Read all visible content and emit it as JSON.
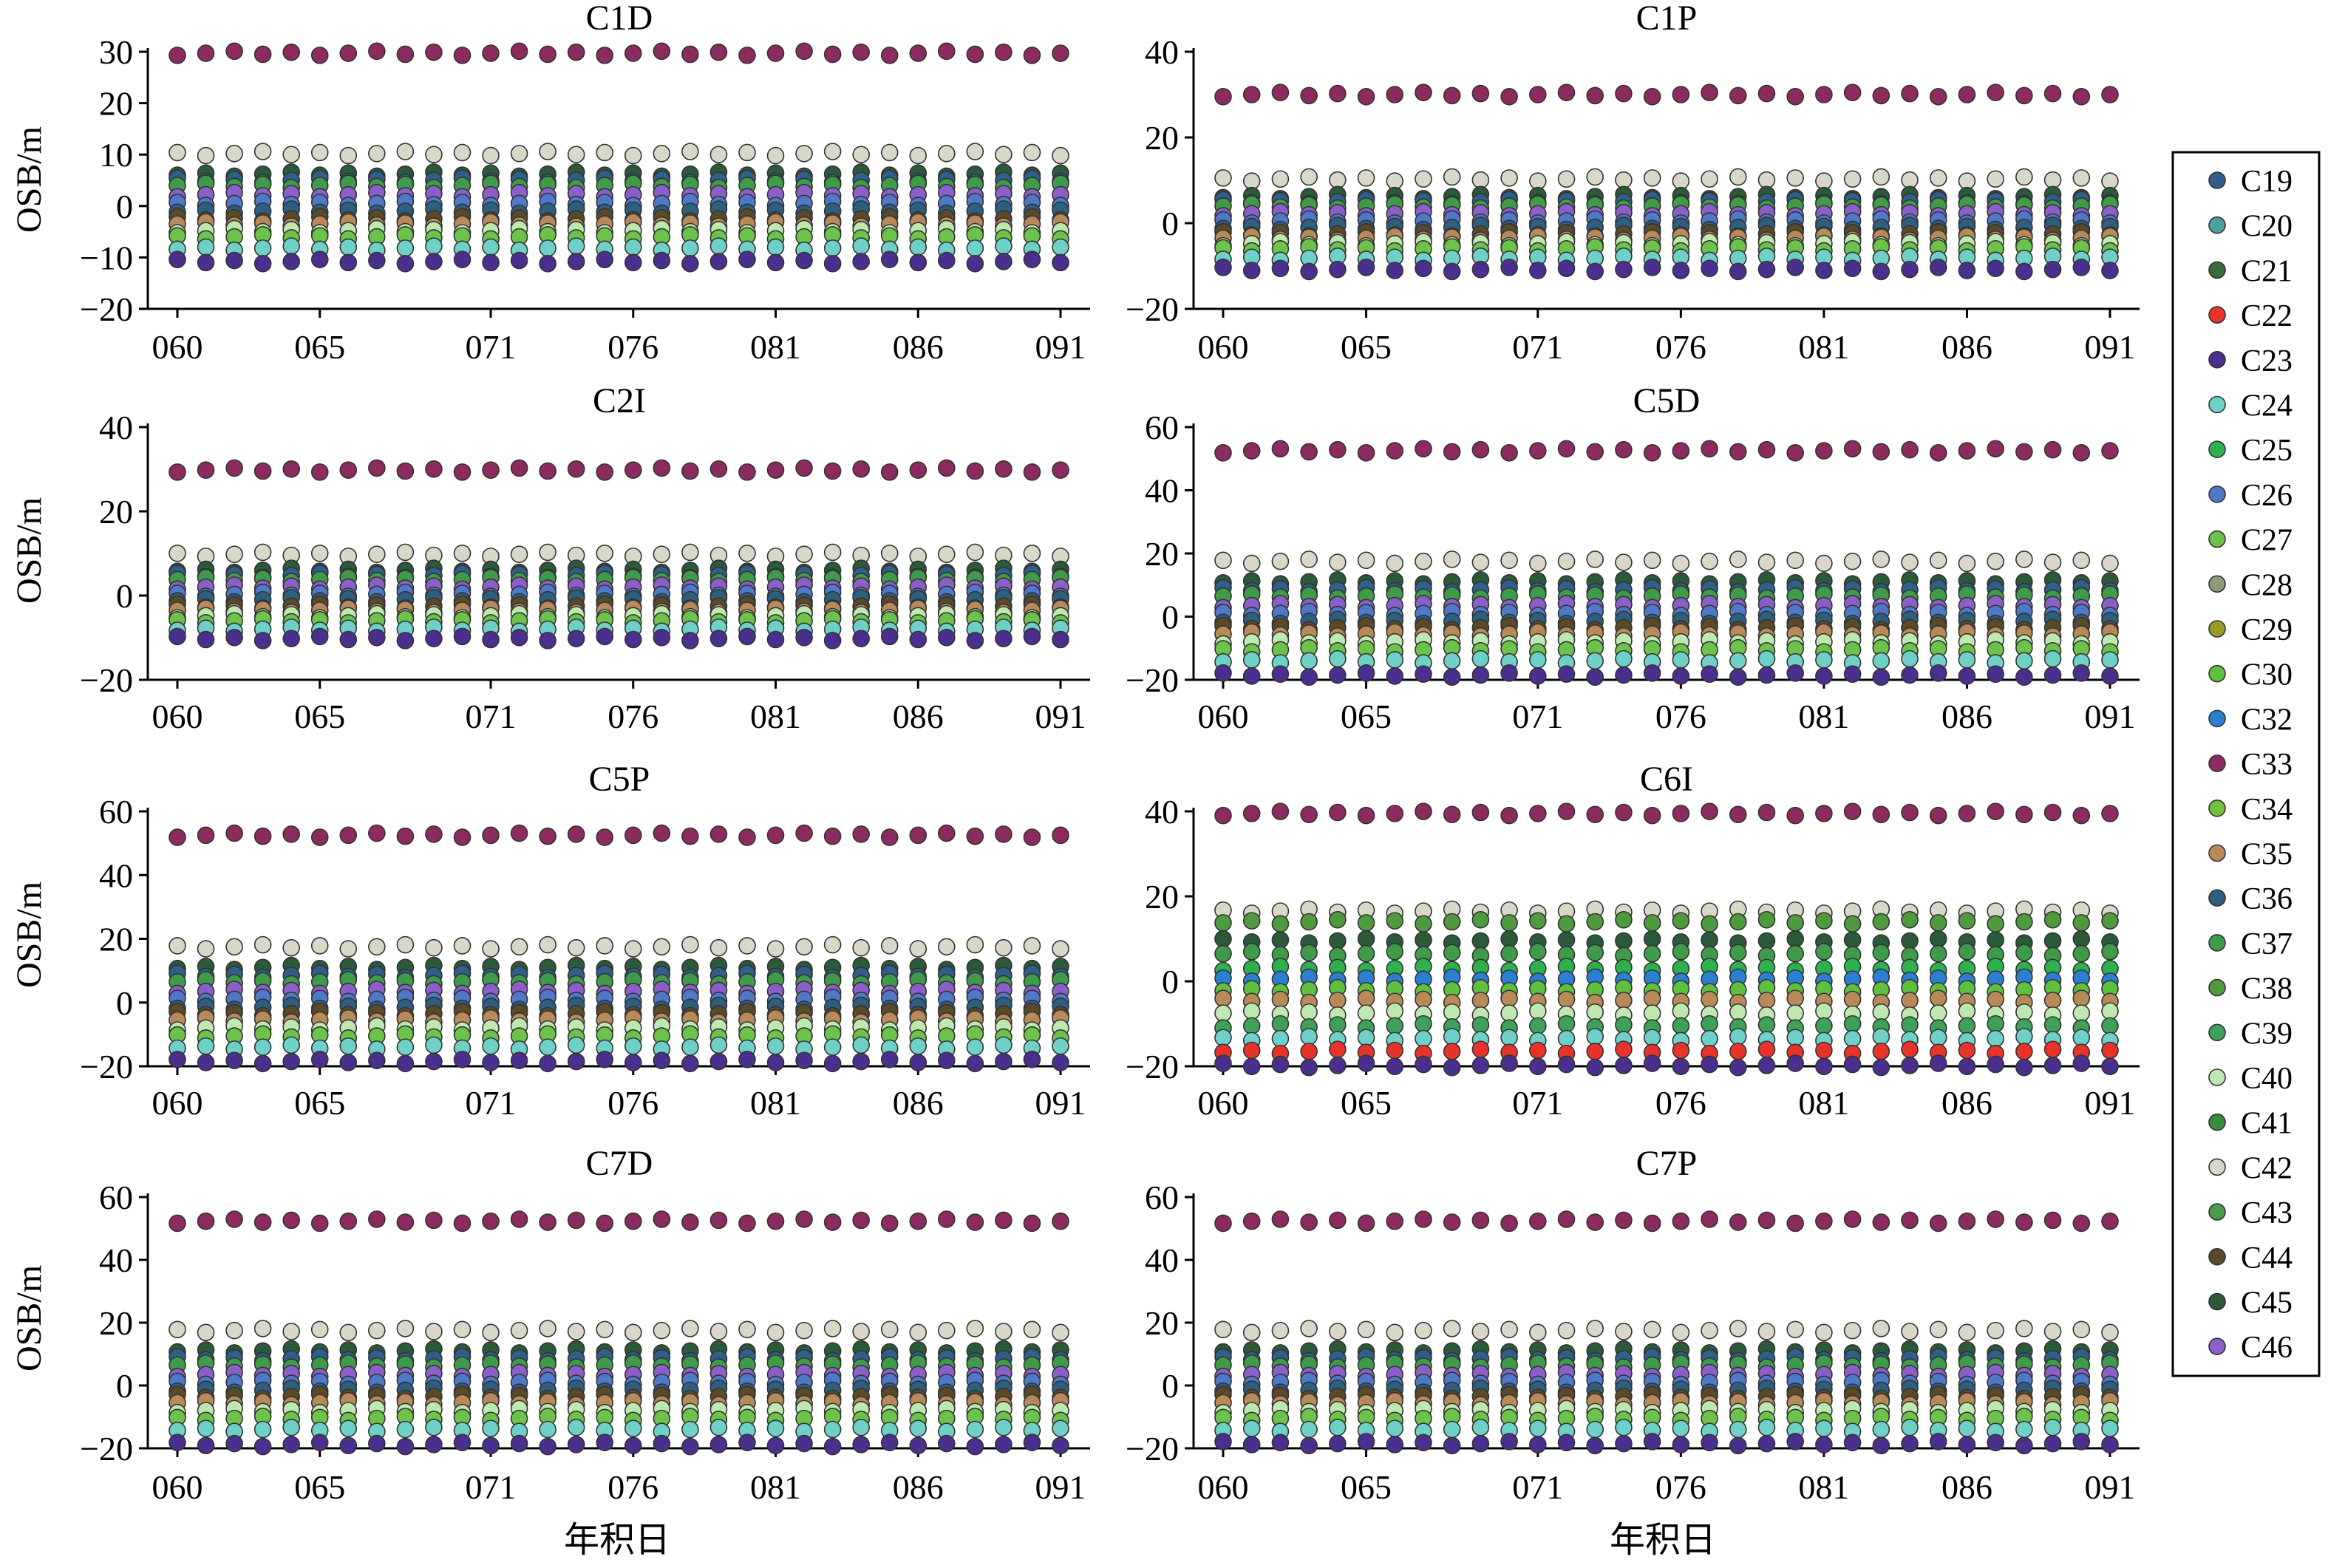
{
  "figure": {
    "x_axis_title": "年积日",
    "y_axis_title": "OSB/m"
  },
  "legend": {
    "items": [
      {
        "label": "C19",
        "color": "#2f5f8a"
      },
      {
        "label": "C20",
        "color": "#4aa3a0"
      },
      {
        "label": "C21",
        "color": "#3a6b3a"
      },
      {
        "label": "C22",
        "color": "#e8332a"
      },
      {
        "label": "C23",
        "color": "#4b2f8f"
      },
      {
        "label": "C24",
        "color": "#6fd0c8"
      },
      {
        "label": "C25",
        "color": "#2fb04f"
      },
      {
        "label": "C26",
        "color": "#4f78c8"
      },
      {
        "label": "C27",
        "color": "#6cc24a"
      },
      {
        "label": "C28",
        "color": "#8a9a7a"
      },
      {
        "label": "C29",
        "color": "#9a9a2a"
      },
      {
        "label": "C30",
        "color": "#5fbf3f"
      },
      {
        "label": "C32",
        "color": "#2a7fd0"
      },
      {
        "label": "C33",
        "color": "#8c2b5f"
      },
      {
        "label": "C34",
        "color": "#6fc23a"
      },
      {
        "label": "C35",
        "color": "#b88a5a"
      },
      {
        "label": "C36",
        "color": "#2d5f7f"
      },
      {
        "label": "C37",
        "color": "#3f9a4a"
      },
      {
        "label": "C38",
        "color": "#4f9a3f"
      },
      {
        "label": "C39",
        "color": "#3fa05a"
      },
      {
        "label": "C40",
        "color": "#bfe8b0"
      },
      {
        "label": "C41",
        "color": "#3a8a3f"
      },
      {
        "label": "C42",
        "color": "#d8d8c8"
      },
      {
        "label": "C43",
        "color": "#4a9a4a"
      },
      {
        "label": "C44",
        "color": "#5a4a2a"
      },
      {
        "label": "C45",
        "color": "#2a5a3a"
      },
      {
        "label": "C46",
        "color": "#8a5fc8"
      }
    ]
  },
  "chart_data": [
    {
      "type": "scatter",
      "title": "C1D",
      "x_ticks": [
        "060",
        "065",
        "071",
        "076",
        "081",
        "086",
        "091"
      ],
      "x_range": [
        60,
        91
      ],
      "ylim": [
        -20,
        30
      ],
      "y_ticks": [
        "30",
        "20",
        "10",
        "0",
        "−10",
        "−20"
      ],
      "y_tick_values": [
        30,
        20,
        10,
        0,
        -10,
        -20
      ],
      "series": [
        {
          "label": "C33",
          "value": 29.7
        },
        {
          "label": "C42",
          "value": 10.2
        },
        {
          "label": "C45",
          "value": 6.2
        },
        {
          "label": "C19",
          "value": 5.0
        },
        {
          "label": "C37",
          "value": 4.0
        },
        {
          "label": "C46",
          "value": 2.2
        },
        {
          "label": "C26",
          "value": 0.5
        },
        {
          "label": "C36",
          "value": -1.0
        },
        {
          "label": "C44",
          "value": -2.5
        },
        {
          "label": "C35",
          "value": -3.5
        },
        {
          "label": "C40",
          "value": -4.8
        },
        {
          "label": "C27",
          "value": -6.0
        },
        {
          "label": "C24",
          "value": -8.2
        },
        {
          "label": "C23",
          "value": -10.8
        }
      ]
    },
    {
      "type": "scatter",
      "title": "C1P",
      "x_ticks": [
        "060",
        "065",
        "071",
        "076",
        "081",
        "086",
        "091"
      ],
      "x_range": [
        60,
        91
      ],
      "ylim": [
        -20,
        40
      ],
      "y_ticks": [
        "40",
        "20",
        "0",
        "−20"
      ],
      "y_tick_values": [
        40,
        20,
        0,
        -20
      ],
      "series": [
        {
          "label": "C33",
          "value": 30.0
        },
        {
          "label": "C42",
          "value": 10.3
        },
        {
          "label": "C45",
          "value": 6.2
        },
        {
          "label": "C19",
          "value": 5.0
        },
        {
          "label": "C37",
          "value": 4.0
        },
        {
          "label": "C46",
          "value": 2.2
        },
        {
          "label": "C26",
          "value": 0.5
        },
        {
          "label": "C36",
          "value": -1.0
        },
        {
          "label": "C44",
          "value": -2.5
        },
        {
          "label": "C35",
          "value": -3.5
        },
        {
          "label": "C40",
          "value": -4.8
        },
        {
          "label": "C27",
          "value": -6.0
        },
        {
          "label": "C24",
          "value": -8.2
        },
        {
          "label": "C23",
          "value": -10.8
        }
      ]
    },
    {
      "type": "scatter",
      "title": "C2I",
      "x_ticks": [
        "060",
        "065",
        "071",
        "076",
        "081",
        "086",
        "091"
      ],
      "x_range": [
        60,
        91
      ],
      "ylim": [
        -20,
        40
      ],
      "y_ticks": [
        "40",
        "20",
        "0",
        "−20"
      ],
      "y_tick_values": [
        40,
        20,
        0,
        -20
      ],
      "series": [
        {
          "label": "C33",
          "value": 29.8
        },
        {
          "label": "C42",
          "value": 9.8
        },
        {
          "label": "C45",
          "value": 6.0
        },
        {
          "label": "C19",
          "value": 4.8
        },
        {
          "label": "C37",
          "value": 3.8
        },
        {
          "label": "C46",
          "value": 2.0
        },
        {
          "label": "C26",
          "value": 0.3
        },
        {
          "label": "C36",
          "value": -1.0
        },
        {
          "label": "C44",
          "value": -2.5
        },
        {
          "label": "C35",
          "value": -3.5
        },
        {
          "label": "C40",
          "value": -4.8
        },
        {
          "label": "C27",
          "value": -6.0
        },
        {
          "label": "C24",
          "value": -8.0
        },
        {
          "label": "C23",
          "value": -10.2
        }
      ]
    },
    {
      "type": "scatter",
      "title": "C5D",
      "x_ticks": [
        "060",
        "065",
        "071",
        "076",
        "081",
        "086",
        "091"
      ],
      "x_range": [
        60,
        91
      ],
      "ylim": [
        -20,
        60
      ],
      "y_ticks": [
        "60",
        "40",
        "20",
        "0",
        "−20"
      ],
      "y_tick_values": [
        60,
        40,
        20,
        0,
        -20
      ],
      "series": [
        {
          "label": "C33",
          "value": 52.5
        },
        {
          "label": "C42",
          "value": 17.5
        },
        {
          "label": "C45",
          "value": 11.0
        },
        {
          "label": "C19",
          "value": 8.5
        },
        {
          "label": "C37",
          "value": 6.5
        },
        {
          "label": "C46",
          "value": 3.5
        },
        {
          "label": "C26",
          "value": 1.0
        },
        {
          "label": "C36",
          "value": -1.5
        },
        {
          "label": "C44",
          "value": -3.5
        },
        {
          "label": "C35",
          "value": -5.5
        },
        {
          "label": "C40",
          "value": -8.0
        },
        {
          "label": "C27",
          "value": -10.5
        },
        {
          "label": "C24",
          "value": -14.0
        },
        {
          "label": "C23",
          "value": -18.5
        }
      ]
    },
    {
      "type": "scatter",
      "title": "C5P",
      "x_ticks": [
        "060",
        "065",
        "071",
        "076",
        "081",
        "086",
        "091"
      ],
      "x_range": [
        60,
        91
      ],
      "ylim": [
        -20,
        60
      ],
      "y_ticks": [
        "60",
        "40",
        "20",
        "0",
        "−20"
      ],
      "y_tick_values": [
        60,
        40,
        20,
        0,
        -20
      ],
      "series": [
        {
          "label": "C33",
          "value": 52.5
        },
        {
          "label": "C42",
          "value": 17.5
        },
        {
          "label": "C45",
          "value": 11.0
        },
        {
          "label": "C19",
          "value": 8.5
        },
        {
          "label": "C37",
          "value": 6.5
        },
        {
          "label": "C46",
          "value": 3.5
        },
        {
          "label": "C26",
          "value": 1.0
        },
        {
          "label": "C36",
          "value": -1.5
        },
        {
          "label": "C44",
          "value": -3.5
        },
        {
          "label": "C35",
          "value": -5.5
        },
        {
          "label": "C40",
          "value": -8.0
        },
        {
          "label": "C27",
          "value": -10.5
        },
        {
          "label": "C24",
          "value": -14.0
        },
        {
          "label": "C23",
          "value": -18.5
        }
      ]
    },
    {
      "type": "scatter",
      "title": "C6I",
      "x_ticks": [
        "060",
        "065",
        "071",
        "076",
        "081",
        "086",
        "091"
      ],
      "x_range": [
        60,
        91
      ],
      "ylim": [
        -20,
        40
      ],
      "y_ticks": [
        "40",
        "20",
        "0",
        "−20"
      ],
      "y_tick_values": [
        40,
        20,
        0,
        -20
      ],
      "series": [
        {
          "label": "C33",
          "value": 39.5
        },
        {
          "label": "C42",
          "value": 16.5
        },
        {
          "label": "C38",
          "value": 14.0
        },
        {
          "label": "C45",
          "value": 9.5
        },
        {
          "label": "C37",
          "value": 6.5
        },
        {
          "label": "C25",
          "value": 3.0
        },
        {
          "label": "C32",
          "value": 0.5
        },
        {
          "label": "C30",
          "value": -2.0
        },
        {
          "label": "C35",
          "value": -4.5
        },
        {
          "label": "C40",
          "value": -7.5
        },
        {
          "label": "C39",
          "value": -10.5
        },
        {
          "label": "C24",
          "value": -13.5
        },
        {
          "label": "C22",
          "value": -16.5
        },
        {
          "label": "C23",
          "value": -19.8
        }
      ]
    },
    {
      "type": "scatter",
      "title": "C7D",
      "x_ticks": [
        "060",
        "065",
        "071",
        "076",
        "081",
        "086",
        "091"
      ],
      "x_range": [
        60,
        91
      ],
      "ylim": [
        -20,
        60
      ],
      "y_ticks": [
        "60",
        "40",
        "20",
        "0",
        "−20"
      ],
      "y_tick_values": [
        60,
        40,
        20,
        0,
        -20
      ],
      "series": [
        {
          "label": "C33",
          "value": 52.3
        },
        {
          "label": "C42",
          "value": 17.5
        },
        {
          "label": "C45",
          "value": 11.0
        },
        {
          "label": "C19",
          "value": 8.5
        },
        {
          "label": "C37",
          "value": 6.5
        },
        {
          "label": "C46",
          "value": 3.5
        },
        {
          "label": "C26",
          "value": 1.0
        },
        {
          "label": "C36",
          "value": -1.5
        },
        {
          "label": "C44",
          "value": -3.5
        },
        {
          "label": "C35",
          "value": -5.5
        },
        {
          "label": "C40",
          "value": -8.0
        },
        {
          "label": "C27",
          "value": -10.5
        },
        {
          "label": "C24",
          "value": -14.0
        },
        {
          "label": "C23",
          "value": -18.8
        }
      ]
    },
    {
      "type": "scatter",
      "title": "C7P",
      "x_ticks": [
        "060",
        "065",
        "071",
        "076",
        "081",
        "086",
        "091"
      ],
      "x_range": [
        60,
        91
      ],
      "ylim": [
        -20,
        60
      ],
      "y_ticks": [
        "60",
        "40",
        "20",
        "0",
        "−20"
      ],
      "y_tick_values": [
        60,
        40,
        20,
        0,
        -20
      ],
      "series": [
        {
          "label": "C33",
          "value": 52.3
        },
        {
          "label": "C42",
          "value": 17.5
        },
        {
          "label": "C45",
          "value": 11.0
        },
        {
          "label": "C19",
          "value": 8.5
        },
        {
          "label": "C37",
          "value": 6.5
        },
        {
          "label": "C46",
          "value": 3.5
        },
        {
          "label": "C26",
          "value": 1.0
        },
        {
          "label": "C36",
          "value": -1.5
        },
        {
          "label": "C44",
          "value": -3.5
        },
        {
          "label": "C35",
          "value": -5.5
        },
        {
          "label": "C40",
          "value": -8.0
        },
        {
          "label": "C27",
          "value": -10.5
        },
        {
          "label": "C24",
          "value": -14.0
        },
        {
          "label": "C23",
          "value": -18.5
        }
      ]
    }
  ]
}
